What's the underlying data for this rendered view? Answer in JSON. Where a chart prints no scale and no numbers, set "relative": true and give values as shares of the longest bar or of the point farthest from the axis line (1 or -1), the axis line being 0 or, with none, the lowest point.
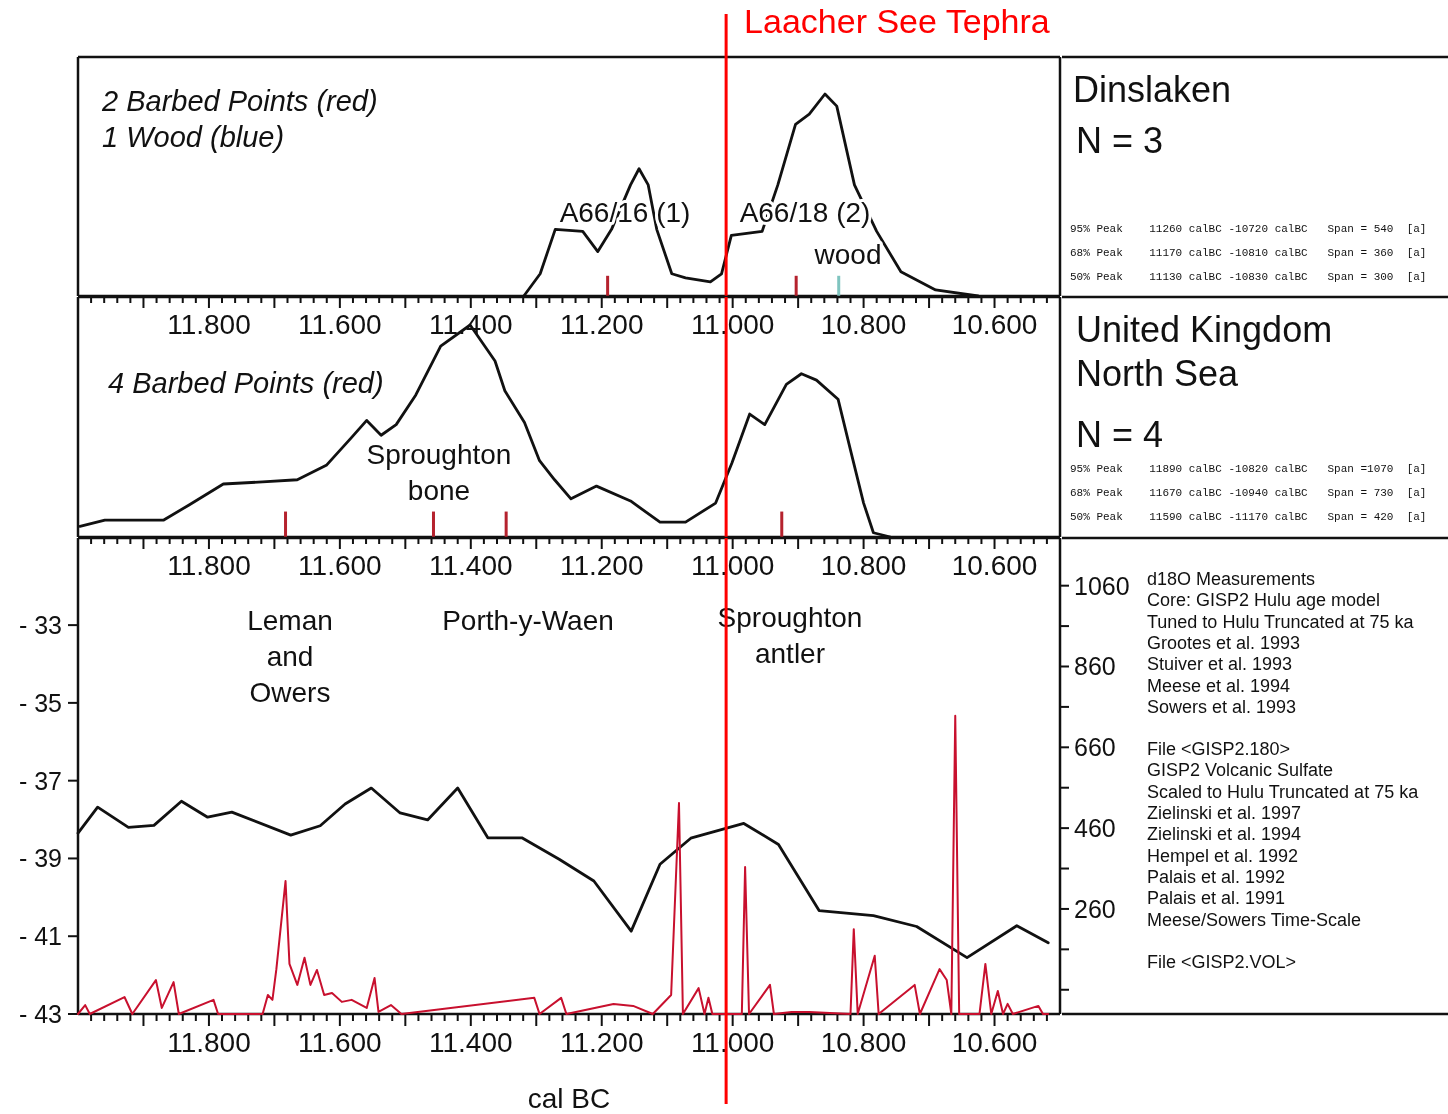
{
  "chart_data": [
    {
      "type": "line",
      "relative": true,
      "tick_labels": "x",
      "title": "Dinslaken",
      "subtitle": "N = 3",
      "xlim": [
        12000,
        10500
      ],
      "xticks": [
        {
          "value": 11980,
          "label": null
        },
        {
          "value": 11960,
          "label": null
        },
        {
          "value": 11940,
          "label": null
        },
        {
          "value": 11920,
          "label": null
        },
        {
          "value": 11900,
          "label": null
        },
        {
          "value": 11880,
          "label": null
        },
        {
          "value": 11860,
          "label": null
        },
        {
          "value": 11840,
          "label": null
        },
        {
          "value": 11820,
          "label": null
        },
        {
          "value": 11800,
          "label": "11.800"
        },
        {
          "value": 11780,
          "label": null
        },
        {
          "value": 11760,
          "label": null
        },
        {
          "value": 11740,
          "label": null
        },
        {
          "value": 11720,
          "label": null
        },
        {
          "value": 11700,
          "label": null
        },
        {
          "value": 11680,
          "label": null
        },
        {
          "value": 11660,
          "label": null
        },
        {
          "value": 11640,
          "label": null
        },
        {
          "value": 11620,
          "label": null
        },
        {
          "value": 11600,
          "label": "11.600"
        },
        {
          "value": 11580,
          "label": null
        },
        {
          "value": 11560,
          "label": null
        },
        {
          "value": 11540,
          "label": null
        },
        {
          "value": 11520,
          "label": null
        },
        {
          "value": 11500,
          "label": null
        },
        {
          "value": 11480,
          "label": null
        },
        {
          "value": 11460,
          "label": null
        },
        {
          "value": 11440,
          "label": null
        },
        {
          "value": 11420,
          "label": null
        },
        {
          "value": 11400,
          "label": "11.400"
        },
        {
          "value": 11380,
          "label": null
        },
        {
          "value": 11360,
          "label": null
        },
        {
          "value": 11340,
          "label": null
        },
        {
          "value": 11320,
          "label": null
        },
        {
          "value": 11300,
          "label": null
        },
        {
          "value": 11280,
          "label": null
        },
        {
          "value": 11260,
          "label": null
        },
        {
          "value": 11240,
          "label": null
        },
        {
          "value": 11220,
          "label": null
        },
        {
          "value": 11200,
          "label": "11.200"
        },
        {
          "value": 11180,
          "label": null
        },
        {
          "value": 11160,
          "label": null
        },
        {
          "value": 11140,
          "label": null
        },
        {
          "value": 11120,
          "label": null
        },
        {
          "value": 11100,
          "label": null
        },
        {
          "value": 11080,
          "label": null
        },
        {
          "value": 11060,
          "label": null
        },
        {
          "value": 11040,
          "label": null
        },
        {
          "value": 11020,
          "label": null
        },
        {
          "value": 11000,
          "label": "11.000"
        },
        {
          "value": 10980,
          "label": null
        },
        {
          "value": 10960,
          "label": null
        },
        {
          "value": 10940,
          "label": null
        },
        {
          "value": 10920,
          "label": null
        },
        {
          "value": 10900,
          "label": null
        },
        {
          "value": 10880,
          "label": null
        },
        {
          "value": 10860,
          "label": null
        },
        {
          "value": 10840,
          "label": null
        },
        {
          "value": 10820,
          "label": null
        },
        {
          "value": 10800,
          "label": "10.800"
        },
        {
          "value": 10780,
          "label": null
        },
        {
          "value": 10760,
          "label": null
        },
        {
          "value": 10740,
          "label": null
        },
        {
          "value": 10720,
          "label": null
        },
        {
          "value": 10700,
          "label": null
        },
        {
          "value": 10680,
          "label": null
        },
        {
          "value": 10660,
          "label": null
        },
        {
          "value": 10640,
          "label": null
        },
        {
          "value": 10620,
          "label": null
        },
        {
          "value": 10600,
          "label": "10.600"
        },
        {
          "value": 10580,
          "label": null
        },
        {
          "value": 10560,
          "label": null
        },
        {
          "value": 10540,
          "label": null
        },
        {
          "value": 10520,
          "label": null
        }
      ],
      "series": [
        {
          "color": "#111111",
          "x": [
            11319,
            11294,
            11271,
            11229,
            11206,
            11185,
            11156,
            11143,
            11129,
            11116,
            11093,
            11072,
            11034,
            11017,
            11002,
            10955,
            10931,
            10904,
            10883,
            10859,
            10841,
            10814,
            10780,
            10743,
            10690,
            10625
          ],
          "values": [
            0,
            0.11,
            0.33,
            0.32,
            0.22,
            0.33,
            0.55,
            0.63,
            0.55,
            0.33,
            0.11,
            0.09,
            0.07,
            0.11,
            0.3,
            0.32,
            0.55,
            0.85,
            0.9,
            1,
            0.94,
            0.55,
            0.32,
            0.12,
            0.03,
            0
          ]
        },
        {
          "type": "bar",
          "color": "#b5222e",
          "x": [
            11191,
            10903
          ],
          "values": [
            0.1,
            0.1
          ]
        },
        {
          "type": "bar",
          "color": "#7fc4bf",
          "x": [
            10838
          ],
          "values": [
            0.1
          ]
        }
      ],
      "ref_lines": [
        {
          "axis": "x",
          "value": 11010,
          "label": "Laacher See Tephra",
          "color": "#ff0000"
        }
      ],
      "annotations": [
        "2 Barbed Points (red)",
        "1 Wood (blue)",
        "95% Peak    11260 calBC -10720 calBC   Span = 540  [a]",
        "68% Peak    11170 calBC -10810 calBC   Span = 360  [a]",
        "50% Peak    11130 calBC -10830 calBC   Span = 300  [a]",
        "A66/16 (1)",
        "A66/18 (2)",
        "wood"
      ]
    },
    {
      "type": "line",
      "relative": true,
      "tick_labels": "x",
      "title": "United Kingdom\nNorth Sea",
      "subtitle": "N = 4",
      "xlim": [
        12000,
        10500
      ],
      "xticks": [
        {
          "value": 11980,
          "label": null
        },
        {
          "value": 11960,
          "label": null
        },
        {
          "value": 11940,
          "label": null
        },
        {
          "value": 11920,
          "label": null
        },
        {
          "value": 11900,
          "label": null
        },
        {
          "value": 11880,
          "label": null
        },
        {
          "value": 11860,
          "label": null
        },
        {
          "value": 11840,
          "label": null
        },
        {
          "value": 11820,
          "label": null
        },
        {
          "value": 11800,
          "label": "11.800"
        },
        {
          "value": 11780,
          "label": null
        },
        {
          "value": 11760,
          "label": null
        },
        {
          "value": 11740,
          "label": null
        },
        {
          "value": 11720,
          "label": null
        },
        {
          "value": 11700,
          "label": null
        },
        {
          "value": 11680,
          "label": null
        },
        {
          "value": 11660,
          "label": null
        },
        {
          "value": 11640,
          "label": null
        },
        {
          "value": 11620,
          "label": null
        },
        {
          "value": 11600,
          "label": "11.600"
        },
        {
          "value": 11580,
          "label": null
        },
        {
          "value": 11560,
          "label": null
        },
        {
          "value": 11540,
          "label": null
        },
        {
          "value": 11520,
          "label": null
        },
        {
          "value": 11500,
          "label": null
        },
        {
          "value": 11480,
          "label": null
        },
        {
          "value": 11460,
          "label": null
        },
        {
          "value": 11440,
          "label": null
        },
        {
          "value": 11420,
          "label": null
        },
        {
          "value": 11400,
          "label": "11.400"
        },
        {
          "value": 11380,
          "label": null
        },
        {
          "value": 11360,
          "label": null
        },
        {
          "value": 11340,
          "label": null
        },
        {
          "value": 11320,
          "label": null
        },
        {
          "value": 11300,
          "label": null
        },
        {
          "value": 11280,
          "label": null
        },
        {
          "value": 11260,
          "label": null
        },
        {
          "value": 11240,
          "label": null
        },
        {
          "value": 11220,
          "label": null
        },
        {
          "value": 11200,
          "label": "11.200"
        },
        {
          "value": 11180,
          "label": null
        },
        {
          "value": 11160,
          "label": null
        },
        {
          "value": 11140,
          "label": null
        },
        {
          "value": 11120,
          "label": null
        },
        {
          "value": 11100,
          "label": null
        },
        {
          "value": 11080,
          "label": null
        },
        {
          "value": 11060,
          "label": null
        },
        {
          "value": 11040,
          "label": null
        },
        {
          "value": 11020,
          "label": null
        },
        {
          "value": 11000,
          "label": "11.000"
        },
        {
          "value": 10980,
          "label": null
        },
        {
          "value": 10960,
          "label": null
        },
        {
          "value": 10940,
          "label": null
        },
        {
          "value": 10920,
          "label": null
        },
        {
          "value": 10900,
          "label": null
        },
        {
          "value": 10880,
          "label": null
        },
        {
          "value": 10860,
          "label": null
        },
        {
          "value": 10840,
          "label": null
        },
        {
          "value": 10820,
          "label": null
        },
        {
          "value": 10800,
          "label": "10.800"
        },
        {
          "value": 10780,
          "label": null
        },
        {
          "value": 10760,
          "label": null
        },
        {
          "value": 10740,
          "label": null
        },
        {
          "value": 10720,
          "label": null
        },
        {
          "value": 10700,
          "label": null
        },
        {
          "value": 10680,
          "label": null
        },
        {
          "value": 10660,
          "label": null
        },
        {
          "value": 10640,
          "label": null
        },
        {
          "value": 10620,
          "label": null
        },
        {
          "value": 10600,
          "label": "10.600"
        },
        {
          "value": 10580,
          "label": null
        },
        {
          "value": 10560,
          "label": null
        },
        {
          "value": 10540,
          "label": null
        },
        {
          "value": 10520,
          "label": null
        }
      ],
      "series": [
        {
          "color": "#111111",
          "x": [
            11997,
            11959,
            11906,
            11869,
            11831,
            11778,
            11718,
            11665,
            11620,
            11582,
            11559,
            11537,
            11514,
            11484,
            11446,
            11401,
            11363,
            11348,
            11318,
            11295,
            11272,
            11247,
            11208,
            11156,
            11111,
            11072,
            11026,
            11001,
            10974,
            10951,
            10918,
            10895,
            10872,
            10839,
            10820,
            10800,
            10785,
            10759
          ],
          "values": [
            0.05,
            0.08,
            0.08,
            0.08,
            0.15,
            0.25,
            0.26,
            0.27,
            0.34,
            0.47,
            0.55,
            0.48,
            0.53,
            0.67,
            0.9,
            1,
            0.83,
            0.69,
            0.54,
            0.36,
            0.27,
            0.18,
            0.24,
            0.17,
            0.07,
            0.07,
            0.16,
            0.35,
            0.58,
            0.53,
            0.72,
            0.77,
            0.74,
            0.65,
            0.41,
            0.16,
            0.02,
            0
          ]
        },
        {
          "type": "bar",
          "color": "#b5222e",
          "x": [
            11683,
            11457,
            11346,
            10925
          ],
          "values": [
            0.12,
            0.12,
            0.12,
            0.12
          ]
        }
      ],
      "ref_lines": [
        {
          "axis": "x",
          "value": 11010,
          "color": "#ff0000"
        }
      ],
      "annotations": [
        "4 Barbed Points (red)",
        "95% Peak    11890 calBC -10820 calBC   Span =1070  [a]",
        "68% Peak    11670 calBC -10940 calBC   Span = 730  [a]",
        "50% Peak    11590 calBC -11170 calBC   Span = 420  [a]",
        "Sproughton\nbone"
      ]
    },
    {
      "type": "line",
      "xlabel": "cal BC",
      "xlim": [
        12000,
        10500
      ],
      "ylim": [
        -43,
        -30.76
      ],
      "y2lim": [
        0,
        1178
      ],
      "xticks": [
        {
          "value": 11980,
          "label": null
        },
        {
          "value": 11960,
          "label": null
        },
        {
          "value": 11940,
          "label": null
        },
        {
          "value": 11920,
          "label": null
        },
        {
          "value": 11900,
          "label": null
        },
        {
          "value": 11880,
          "label": null
        },
        {
          "value": 11860,
          "label": null
        },
        {
          "value": 11840,
          "label": null
        },
        {
          "value": 11820,
          "label": null
        },
        {
          "value": 11800,
          "label": "11.800"
        },
        {
          "value": 11780,
          "label": null
        },
        {
          "value": 11760,
          "label": null
        },
        {
          "value": 11740,
          "label": null
        },
        {
          "value": 11720,
          "label": null
        },
        {
          "value": 11700,
          "label": null
        },
        {
          "value": 11680,
          "label": null
        },
        {
          "value": 11660,
          "label": null
        },
        {
          "value": 11640,
          "label": null
        },
        {
          "value": 11620,
          "label": null
        },
        {
          "value": 11600,
          "label": "11.600"
        },
        {
          "value": 11580,
          "label": null
        },
        {
          "value": 11560,
          "label": null
        },
        {
          "value": 11540,
          "label": null
        },
        {
          "value": 11520,
          "label": null
        },
        {
          "value": 11500,
          "label": null
        },
        {
          "value": 11480,
          "label": null
        },
        {
          "value": 11460,
          "label": null
        },
        {
          "value": 11440,
          "label": null
        },
        {
          "value": 11420,
          "label": null
        },
        {
          "value": 11400,
          "label": "11.400"
        },
        {
          "value": 11380,
          "label": null
        },
        {
          "value": 11360,
          "label": null
        },
        {
          "value": 11340,
          "label": null
        },
        {
          "value": 11320,
          "label": null
        },
        {
          "value": 11300,
          "label": null
        },
        {
          "value": 11280,
          "label": null
        },
        {
          "value": 11260,
          "label": null
        },
        {
          "value": 11240,
          "label": null
        },
        {
          "value": 11220,
          "label": null
        },
        {
          "value": 11200,
          "label": "11.200"
        },
        {
          "value": 11180,
          "label": null
        },
        {
          "value": 11160,
          "label": null
        },
        {
          "value": 11140,
          "label": null
        },
        {
          "value": 11120,
          "label": null
        },
        {
          "value": 11100,
          "label": null
        },
        {
          "value": 11080,
          "label": null
        },
        {
          "value": 11060,
          "label": null
        },
        {
          "value": 11040,
          "label": null
        },
        {
          "value": 11020,
          "label": null
        },
        {
          "value": 11000,
          "label": "11.000"
        },
        {
          "value": 10980,
          "label": null
        },
        {
          "value": 10960,
          "label": null
        },
        {
          "value": 10940,
          "label": null
        },
        {
          "value": 10920,
          "label": null
        },
        {
          "value": 10900,
          "label": null
        },
        {
          "value": 10880,
          "label": null
        },
        {
          "value": 10860,
          "label": null
        },
        {
          "value": 10840,
          "label": null
        },
        {
          "value": 10820,
          "label": null
        },
        {
          "value": 10800,
          "label": "10.800"
        },
        {
          "value": 10780,
          "label": null
        },
        {
          "value": 10760,
          "label": null
        },
        {
          "value": 10740,
          "label": null
        },
        {
          "value": 10720,
          "label": null
        },
        {
          "value": 10700,
          "label": null
        },
        {
          "value": 10680,
          "label": null
        },
        {
          "value": 10660,
          "label": null
        },
        {
          "value": 10640,
          "label": null
        },
        {
          "value": 10620,
          "label": null
        },
        {
          "value": 10600,
          "label": "10.600"
        },
        {
          "value": 10580,
          "label": null
        },
        {
          "value": 10560,
          "label": null
        },
        {
          "value": 10540,
          "label": null
        },
        {
          "value": 10520,
          "label": null
        }
      ],
      "yticks": [
        {
          "value": -33,
          "label": "- 33"
        },
        {
          "value": -35,
          "label": "- 35"
        },
        {
          "value": -37,
          "label": "- 37"
        },
        {
          "value": -39,
          "label": "- 39"
        },
        {
          "value": -41,
          "label": "- 41"
        },
        {
          "value": -43,
          "label": "- 43"
        }
      ],
      "y2ticks": [
        1060,
        {
          "value": 960,
          "label": null
        },
        860,
        {
          "value": 760,
          "label": null
        },
        660,
        {
          "value": 560,
          "label": null
        },
        460,
        {
          "value": 360,
          "label": null
        },
        260,
        {
          "value": 160,
          "label": null
        },
        {
          "value": 60,
          "label": null
        }
      ],
      "series": [
        {
          "color": "#111111",
          "x": [
            12000,
            11970,
            11923,
            11884,
            11842,
            11802,
            11765,
            11675,
            11630,
            11592,
            11552,
            11508,
            11466,
            11420,
            11374,
            11322,
            11265,
            11212,
            11155,
            11111,
            11064,
            10983,
            10930,
            10868,
            10785,
            10719,
            10642,
            10566,
            10518
          ],
          "values": [
            -38.35,
            -37.68,
            -38.2,
            -38.15,
            -37.53,
            -37.94,
            -37.81,
            -38.4,
            -38.16,
            -37.6,
            -37.19,
            -37.83,
            -38.01,
            -37.19,
            -38.47,
            -38.47,
            -39.02,
            -39.58,
            -40.87,
            -39.15,
            -38.48,
            -38.1,
            -38.64,
            -40.34,
            -40.47,
            -40.75,
            -41.55,
            -40.73,
            -41.17
          ]
        },
        {
          "color": "#c8102e",
          "axis": "y2",
          "x": [
            12000,
            11989,
            11982,
            11929,
            11917,
            11881,
            11872,
            11854,
            11846,
            11793,
            11786,
            11718,
            11710,
            11703,
            11697,
            11683,
            11677,
            11665,
            11654,
            11645,
            11635,
            11624,
            11612,
            11597,
            11582,
            11559,
            11547,
            11541,
            11522,
            11506,
            11303,
            11295,
            11262,
            11254,
            11182,
            11152,
            11122,
            11094,
            11082,
            11076,
            11052,
            11043,
            11037,
            11031,
            10986,
            10981,
            10975,
            10943,
            10937,
            10910,
            10883,
            10820,
            10815,
            10809,
            10783,
            10777,
            10722,
            10714,
            10684,
            10673,
            10666,
            10660,
            10654,
            10623,
            10614,
            10605,
            10595,
            10587,
            10580,
            10572,
            10533,
            10526,
            10518
          ],
          "values": [
            0,
            22,
            0,
            42,
            0,
            84,
            15,
            79,
            0,
            35,
            0,
            0,
            47,
            35,
            111,
            329,
            124,
            72,
            139,
            72,
            109,
            47,
            52,
            30,
            35,
            15,
            89,
            5,
            22,
            0,
            40,
            0,
            40,
            0,
            25,
            20,
            0,
            47,
            522,
            0,
            64,
            0,
            40,
            0,
            0,
            364,
            0,
            72,
            0,
            5,
            5,
            0,
            210,
            0,
            144,
            0,
            72,
            0,
            111,
            84,
            0,
            738,
            0,
            0,
            124,
            0,
            57,
            0,
            25,
            0,
            20,
            0,
            0
          ]
        }
      ],
      "ref_lines": [
        {
          "axis": "x",
          "value": 11010,
          "color": "#ff0000"
        }
      ],
      "annotations": [
        "Leman\nand\nOwers",
        "Porth-y-Waen",
        "Sproughton\nantler",
        "d18O Measurements",
        "Core: GISP2 Hulu age model",
        "Tuned to Hulu Truncated at 75 ka",
        "Grootes et al. 1993",
        "Stuiver et al. 1993",
        "Meese et al. 1994",
        "Sowers et al. 1993",
        "File <GISP2.180>",
        "GISP2 Volcanic Sulfate",
        "Scaled to Hulu Truncated at 75 ka",
        "Zielinski et al. 1997",
        "Zielinski et al. 1994",
        "Hempel et al. 1992",
        "Palais et al. 1992",
        "Palais et al. 1991",
        "Meese/Sowers Time-Scale",
        "File <GISP2.VOL>"
      ]
    }
  ]
}
